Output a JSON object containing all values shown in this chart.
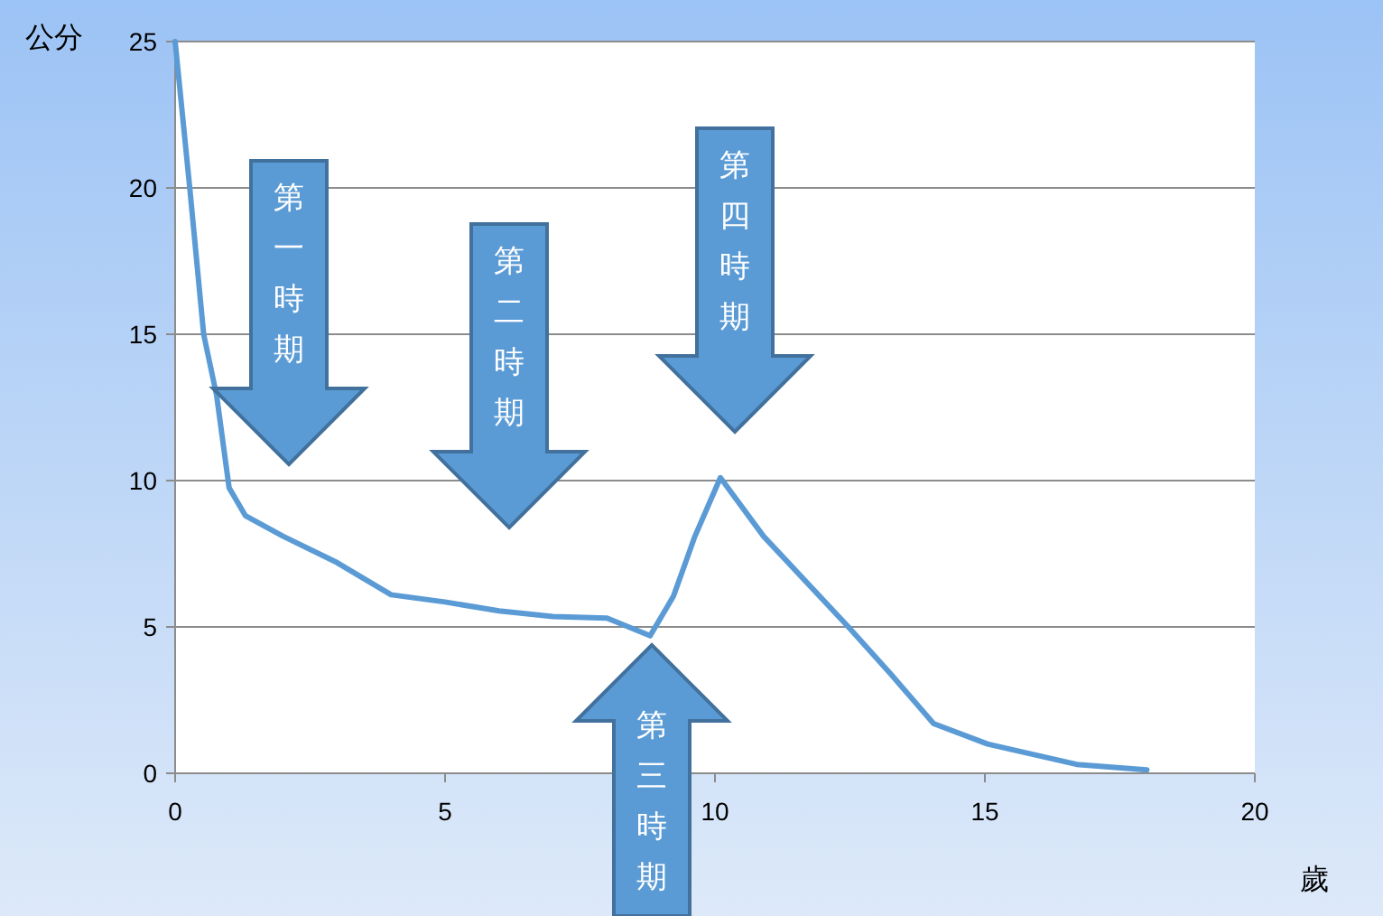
{
  "chart_data": {
    "type": "line",
    "xlabel": "歲",
    "ylabel": "公分",
    "series": [
      {
        "color": "#5b9bd5",
        "x": [
          0,
          0.27,
          0.53,
          0.77,
          1,
          1.3,
          2,
          3,
          4,
          5,
          6,
          7,
          8,
          8.8,
          9.23,
          9.63,
          10.1,
          10.9,
          12.47,
          13.25,
          14.05,
          15.05,
          16.7,
          18
        ],
        "values": [
          25,
          20,
          15,
          12.9,
          9.75,
          8.8,
          8.1,
          7.2,
          6.1,
          5.85,
          5.55,
          5.35,
          5.3,
          4.7,
          6.05,
          8.1,
          10.1,
          8.1,
          5,
          3.4,
          1.7,
          1,
          0.3,
          0.12
        ]
      }
    ],
    "xlim": [
      0,
      20
    ],
    "xticks": [
      0,
      5,
      10,
      15,
      20
    ],
    "ylim": [
      0,
      25
    ],
    "yticks": [
      0,
      5,
      10,
      15,
      20,
      25
    ],
    "grid": "y",
    "marker": "none",
    "line_style": "solid",
    "annotations": [
      "第一時期",
      "第二時期",
      "第三時期",
      "第四時期"
    ]
  }
}
